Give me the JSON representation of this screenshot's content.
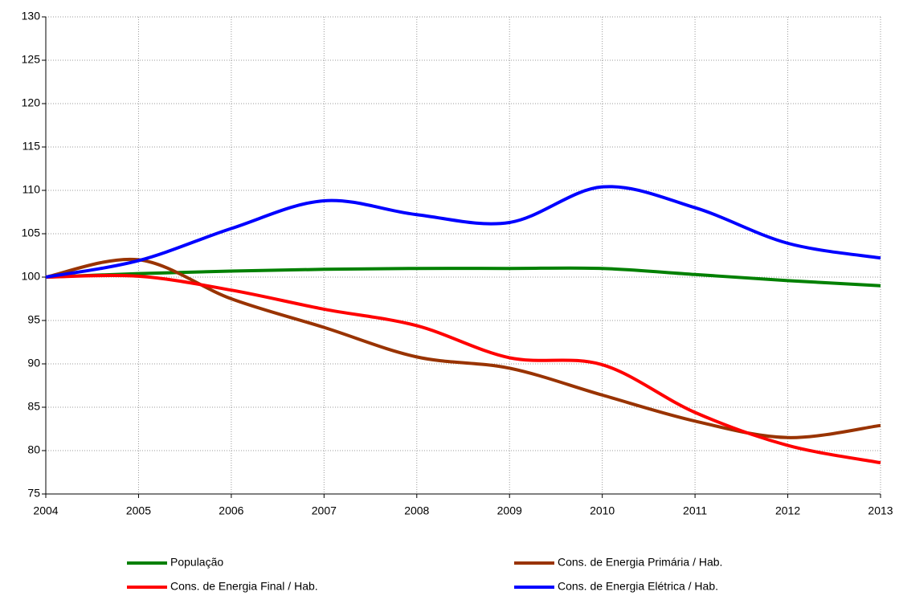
{
  "chart_data": {
    "type": "line",
    "x": [
      2004,
      2005,
      2006,
      2007,
      2008,
      2009,
      2010,
      2011,
      2012,
      2013
    ],
    "series": [
      {
        "name": "População",
        "color": "#008000",
        "values": [
          100,
          100.4,
          100.7,
          100.9,
          101.0,
          101.0,
          101.0,
          100.3,
          99.6,
          99.0
        ]
      },
      {
        "name": "Cons. de Energia Primária / Hab.",
        "color": "#993300",
        "values": [
          100,
          102.0,
          97.5,
          94.2,
          90.8,
          89.5,
          86.4,
          83.4,
          81.5,
          82.9
        ]
      },
      {
        "name": "Cons. de Energia Final / Hab.",
        "color": "#ff0000",
        "values": [
          100,
          100.1,
          98.5,
          96.3,
          94.4,
          90.7,
          89.9,
          84.4,
          80.6,
          78.6
        ]
      },
      {
        "name": "Cons. de Energia Elétrica / Hab.",
        "color": "#0000ff",
        "values": [
          100,
          101.9,
          105.6,
          108.8,
          107.2,
          106.3,
          110.4,
          108.0,
          103.9,
          102.2
        ]
      }
    ],
    "xlim": [
      2004,
      2013
    ],
    "xticks": [
      2004,
      2005,
      2006,
      2007,
      2008,
      2009,
      2010,
      2011,
      2012,
      2013
    ],
    "ylim": [
      75,
      130
    ],
    "yticks": [
      75,
      80,
      85,
      90,
      95,
      100,
      105,
      110,
      115,
      120,
      125,
      130
    ],
    "grid": true,
    "legend": "bottom"
  }
}
